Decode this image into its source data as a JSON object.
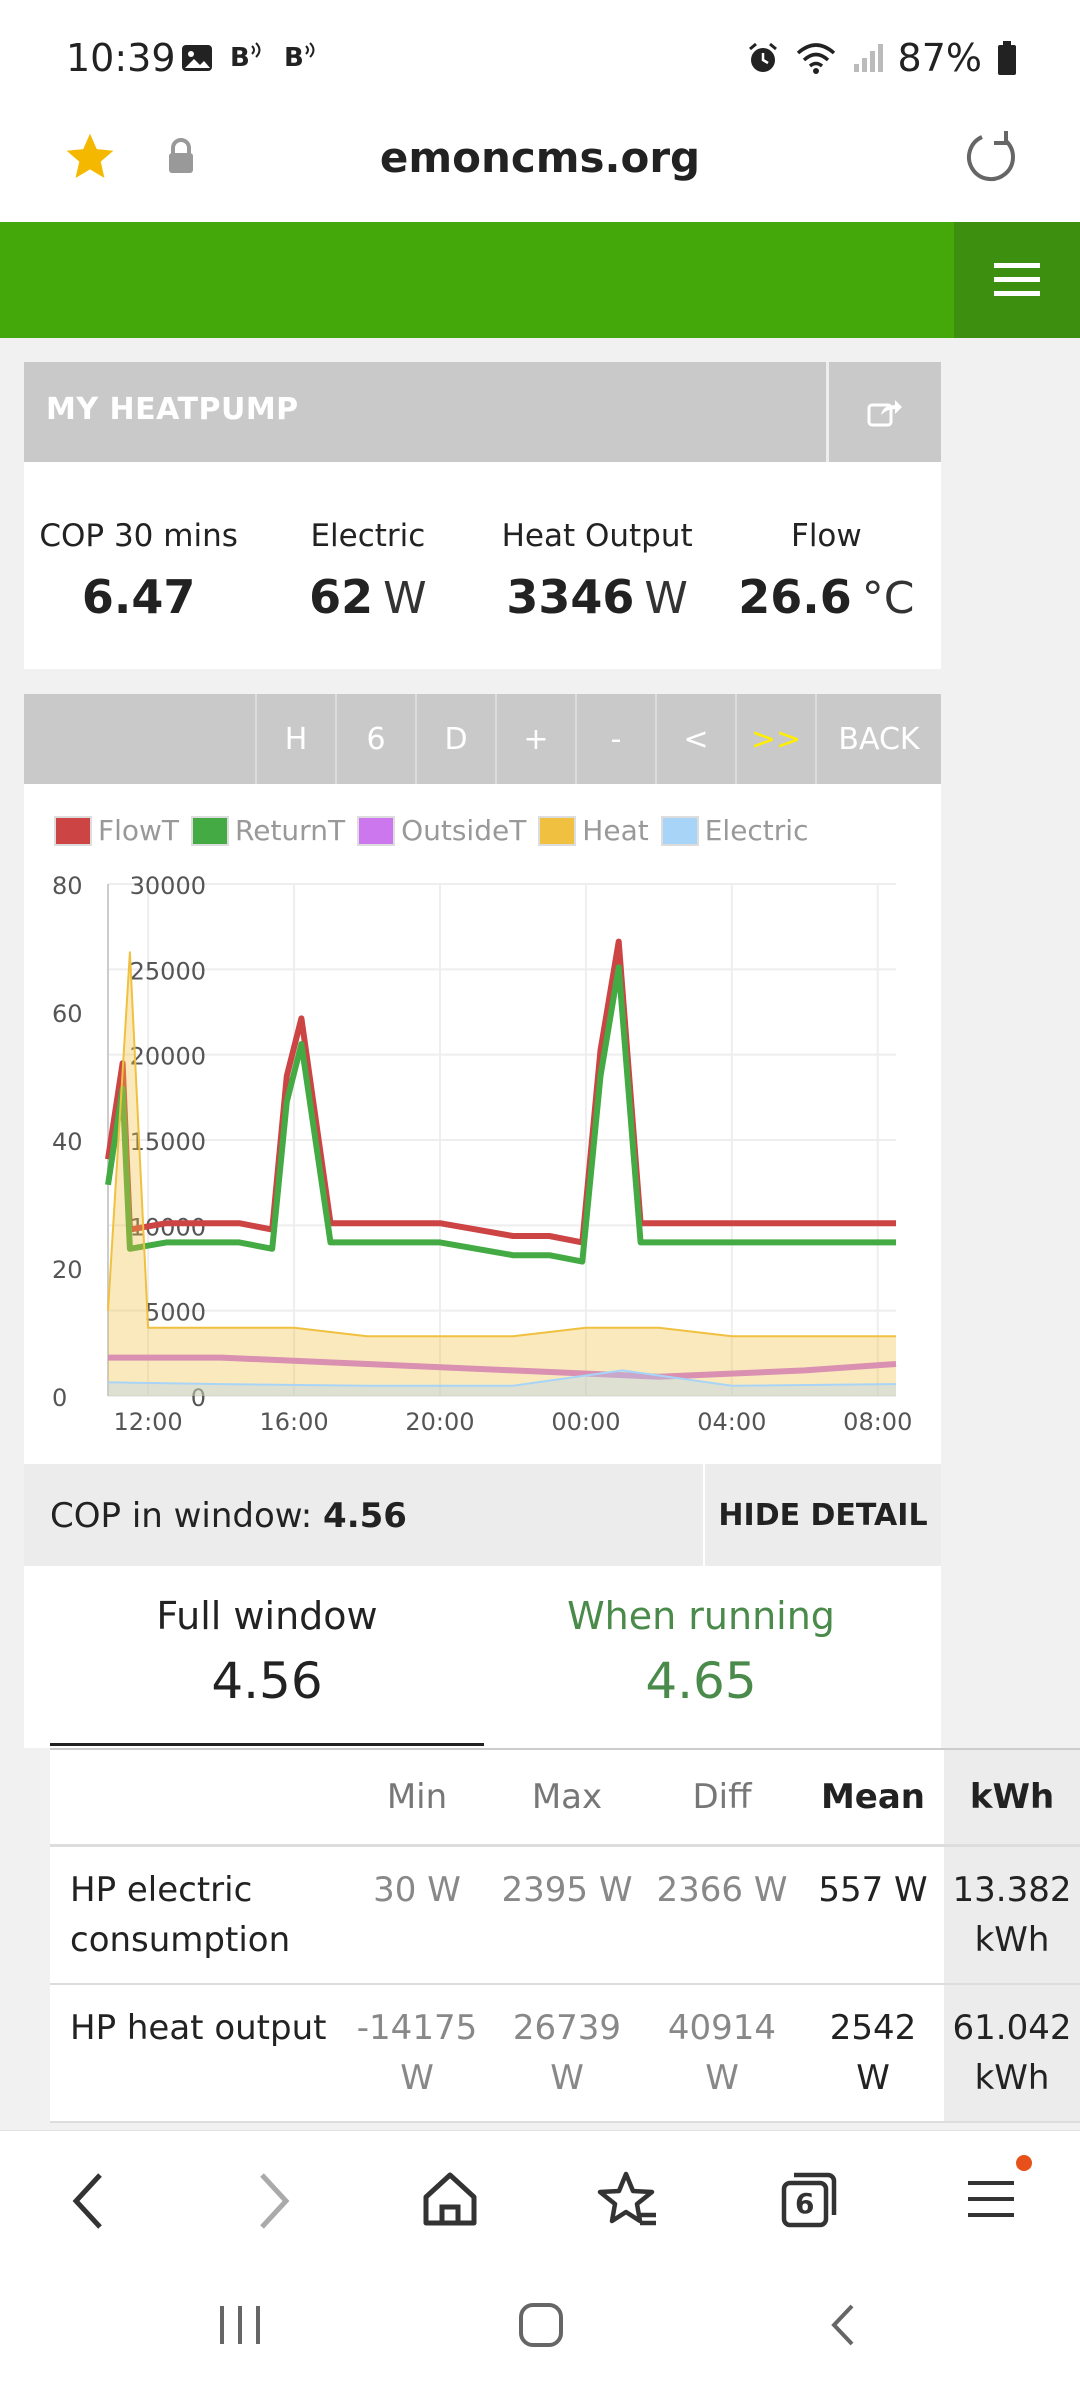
{
  "status": {
    "time": "10:39",
    "battery": "87%"
  },
  "browser": {
    "domain": "emoncms.org"
  },
  "app": {
    "title": "MY HEATPUMP"
  },
  "stats": [
    {
      "label": "COP 30 mins",
      "value": "6.47",
      "unit": ""
    },
    {
      "label": "Electric",
      "value": "62",
      "unit": "W"
    },
    {
      "label": "Heat Output",
      "value": "3346",
      "unit": "W"
    },
    {
      "label": "Flow",
      "value": "26.6",
      "unit": "°C"
    }
  ],
  "toolbar": {
    "buttons": [
      "H",
      "6",
      "D",
      "+",
      "-",
      "<",
      ">>",
      "BACK"
    ]
  },
  "chart_data": {
    "type": "line",
    "legend": [
      "FlowT",
      "ReturnT",
      "OutsideT",
      "Heat",
      "Electric"
    ],
    "colors": {
      "FlowT": "#cc4444",
      "ReturnT": "#44aa44",
      "OutsideT": "#cc77ee",
      "Heat": "#f0c040",
      "Electric": "#a8d4f8"
    },
    "y_left_ticks": [
      "80",
      "60",
      "40",
      "20",
      "0"
    ],
    "y_right_ticks": [
      "30000",
      "25000",
      "20000",
      "15000",
      "10000",
      "5000",
      "0"
    ],
    "x_ticks": [
      "12:00",
      "16:00",
      "20:00",
      "00:00",
      "04:00",
      "08:00"
    ],
    "ylim_left": [
      0,
      80
    ],
    "ylim_right": [
      0,
      30000
    ],
    "series": [
      {
        "name": "FlowT",
        "x": [
          10.9,
          11.3,
          11.5,
          12.5,
          13.5,
          14.5,
          15.4,
          15.8,
          16.2,
          17,
          18,
          19,
          20,
          21,
          22,
          23,
          23.9,
          24.4,
          24.9,
          25.5,
          26.5,
          27.5,
          28.5,
          29.5,
          30.5,
          31,
          31.5,
          32.5
        ],
        "values": [
          37,
          52,
          26,
          27,
          27,
          27,
          26,
          50,
          59,
          27,
          27,
          27,
          27,
          26,
          25,
          25,
          24,
          54,
          71,
          27,
          27,
          27,
          27,
          27,
          27,
          27,
          27,
          27
        ]
      },
      {
        "name": "ReturnT",
        "x": [
          10.9,
          11.3,
          11.5,
          12.5,
          13.5,
          14.5,
          15.4,
          15.8,
          16.2,
          17,
          18,
          19,
          20,
          21,
          22,
          23,
          23.9,
          24.4,
          24.9,
          25.5,
          26.5,
          27.5,
          28.5,
          29.5,
          30.5,
          31,
          31.5,
          32.5
        ],
        "values": [
          33,
          48,
          23,
          24,
          24,
          24,
          23,
          46,
          55,
          24,
          24,
          24,
          24,
          23,
          22,
          22,
          21,
          50,
          67,
          24,
          24,
          24,
          24,
          24,
          24,
          24,
          24,
          24
        ]
      },
      {
        "name": "OutsideT",
        "x": [
          10.9,
          14,
          18,
          22,
          26,
          30,
          32.5
        ],
        "values": [
          6,
          6,
          5,
          4,
          3,
          4,
          5
        ]
      },
      {
        "name": "Heat",
        "x": [
          10.9,
          11.5,
          12,
          14,
          16,
          18,
          20,
          22,
          24,
          26,
          28,
          30,
          32.5
        ],
        "values": [
          5000,
          26000,
          4000,
          4000,
          4000,
          3500,
          3500,
          3500,
          4000,
          4000,
          3500,
          3500,
          3500
        ]
      },
      {
        "name": "Electric",
        "x": [
          10.9,
          14,
          18,
          22,
          25,
          28,
          32.5
        ],
        "values": [
          800,
          700,
          600,
          600,
          1500,
          600,
          700
        ]
      }
    ]
  },
  "cop": {
    "label": "COP in window:",
    "value": "4.56",
    "hide_label": "HIDE DETAIL"
  },
  "cop_panel": {
    "full_label": "Full window",
    "full_value": "4.56",
    "running_label": "When running",
    "running_value": "4.65"
  },
  "table": {
    "headers": [
      "",
      "Min",
      "Max",
      "Diff",
      "Mean",
      "kWh"
    ],
    "rows": [
      {
        "name": "HP electric consumption",
        "min": "30 W",
        "max": "2395 W",
        "diff": "2366 W",
        "mean": "557 W",
        "kwh": "13.382 kWh"
      },
      {
        "name": "HP heat output",
        "min": "-14175 W",
        "max": "26739 W",
        "diff": "40914 W",
        "mean": "2542 W",
        "kwh": "61.042 kWh"
      }
    ]
  },
  "nav": {
    "tabs_count": "6"
  }
}
